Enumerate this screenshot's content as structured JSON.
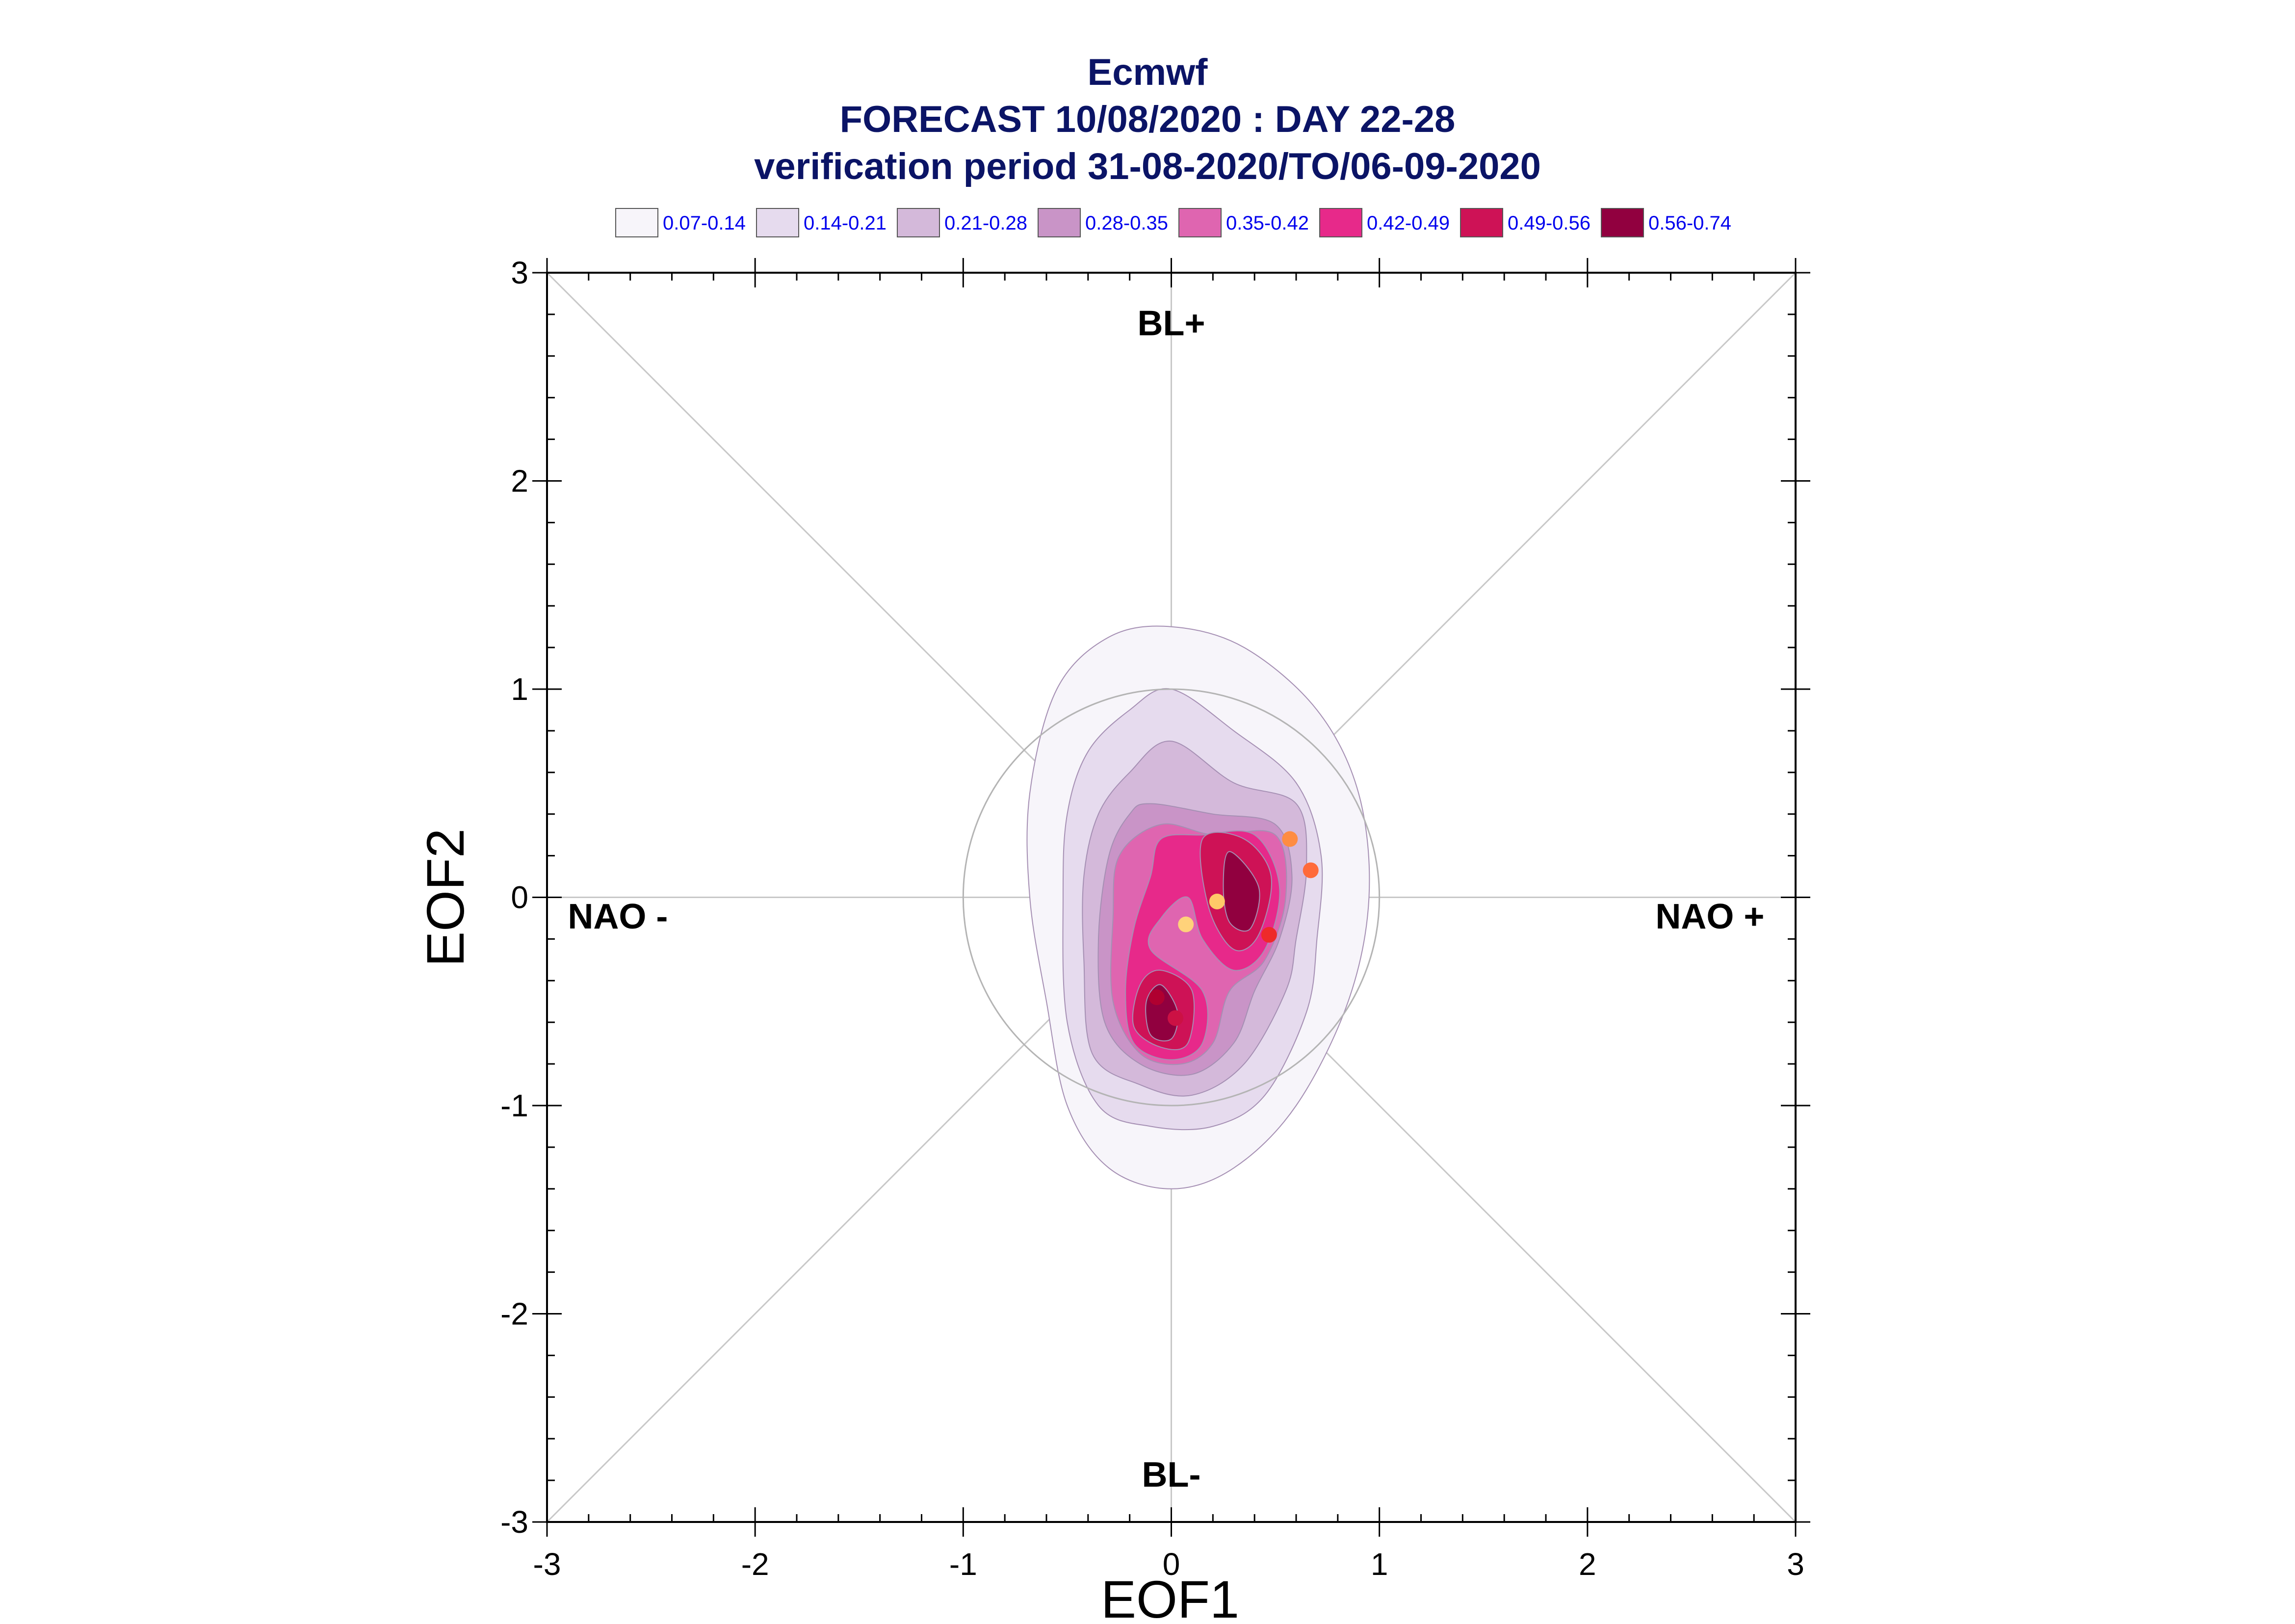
{
  "titles": {
    "line1": "Ecmwf",
    "line2": "FORECAST 10/08/2020 : DAY 22-28",
    "line3": "verification period 31-08-2020/TO/06-09-2020"
  },
  "chart_data": {
    "type": "scatter",
    "title": "Ecmwf",
    "subtitle": "FORECAST 10/08/2020 : DAY 22-28 / verification period 31-08-2020/TO/06-09-2020",
    "xlabel": "EOF1",
    "ylabel": "EOF2",
    "xlim": [
      -3,
      3
    ],
    "ylim": [
      -3,
      3
    ],
    "xticks": [
      "-3",
      "-2",
      "-1",
      "0",
      "1",
      "2",
      "3"
    ],
    "yticks": [
      "-3",
      "-2",
      "-1",
      "0",
      "1",
      "2",
      "3"
    ],
    "grid": false,
    "region_labels": {
      "top": "BL+",
      "bottom": "BL-",
      "left": "NAO -",
      "right": "NAO +"
    },
    "reference_circle_radius": 1,
    "legend": {
      "placement": "top",
      "entries": [
        {
          "label": "0.07-0.14",
          "color": "#f7f5fa"
        },
        {
          "label": "0.14-0.21",
          "color": "#e6dbee"
        },
        {
          "label": "0.21-0.28",
          "color": "#d4b9da"
        },
        {
          "label": "0.28-0.35",
          "color": "#c994c7"
        },
        {
          "label": "0.35-0.42",
          "color": "#df65b0"
        },
        {
          "label": "0.42-0.49",
          "color": "#e7298a"
        },
        {
          "label": "0.49-0.56",
          "color": "#ce1256"
        },
        {
          "label": "0.56-0.74",
          "color": "#91003f"
        }
      ]
    },
    "density_contours": [
      {
        "level": "0.07-0.14",
        "color": "#f7f5fa",
        "points": [
          [
            0,
            1.3
          ],
          [
            0.35,
            1.2
          ],
          [
            0.7,
            0.9
          ],
          [
            0.9,
            0.5
          ],
          [
            0.95,
            0
          ],
          [
            0.85,
            -0.5
          ],
          [
            0.6,
            -1.0
          ],
          [
            0.3,
            -1.3
          ],
          [
            0,
            -1.4
          ],
          [
            -0.3,
            -1.3
          ],
          [
            -0.5,
            -1.0
          ],
          [
            -0.6,
            -0.5
          ],
          [
            -0.68,
            0
          ],
          [
            -0.68,
            0.5
          ],
          [
            -0.55,
            1.0
          ],
          [
            -0.3,
            1.25
          ]
        ]
      },
      {
        "level": "0.14-0.21",
        "color": "#e6dbee",
        "points": [
          [
            0,
            1.0
          ],
          [
            0.3,
            0.8
          ],
          [
            0.6,
            0.55
          ],
          [
            0.72,
            0.2
          ],
          [
            0.7,
            -0.2
          ],
          [
            0.65,
            -0.55
          ],
          [
            0.45,
            -0.95
          ],
          [
            0.2,
            -1.1
          ],
          [
            -0.1,
            -1.1
          ],
          [
            -0.35,
            -1.0
          ],
          [
            -0.5,
            -0.6
          ],
          [
            -0.52,
            0
          ],
          [
            -0.5,
            0.4
          ],
          [
            -0.4,
            0.7
          ],
          [
            -0.2,
            0.9
          ]
        ]
      },
      {
        "level": "0.21-0.28",
        "color": "#d4b9da",
        "points": [
          [
            0,
            0.75
          ],
          [
            0.3,
            0.55
          ],
          [
            0.6,
            0.45
          ],
          [
            0.65,
            0.15
          ],
          [
            0.6,
            -0.2
          ],
          [
            0.55,
            -0.45
          ],
          [
            0.35,
            -0.8
          ],
          [
            0.1,
            -0.95
          ],
          [
            -0.15,
            -0.9
          ],
          [
            -0.38,
            -0.75
          ],
          [
            -0.42,
            -0.3
          ],
          [
            -0.42,
            0.1
          ],
          [
            -0.35,
            0.4
          ],
          [
            -0.2,
            0.6
          ]
        ]
      },
      {
        "level": "0.28-0.35",
        "color": "#c994c7",
        "points": [
          [
            -0.1,
            0.45
          ],
          [
            0.2,
            0.4
          ],
          [
            0.5,
            0.35
          ],
          [
            0.58,
            0.1
          ],
          [
            0.52,
            -0.2
          ],
          [
            0.4,
            -0.45
          ],
          [
            0.3,
            -0.7
          ],
          [
            0.1,
            -0.85
          ],
          [
            -0.15,
            -0.8
          ],
          [
            -0.32,
            -0.6
          ],
          [
            -0.35,
            -0.2
          ],
          [
            -0.3,
            0.2
          ],
          [
            -0.2,
            0.4
          ]
        ]
      },
      {
        "level": "0.35-0.42",
        "color": "#df65b0",
        "points": [
          [
            -0.05,
            0.35
          ],
          [
            0.2,
            0.3
          ],
          [
            0.5,
            0.3
          ],
          [
            0.55,
            0
          ],
          [
            0.45,
            -0.3
          ],
          [
            0.28,
            -0.45
          ],
          [
            0.2,
            -0.7
          ],
          [
            0.05,
            -0.8
          ],
          [
            -0.15,
            -0.75
          ],
          [
            -0.28,
            -0.5
          ],
          [
            -0.28,
            -0.1
          ],
          [
            -0.25,
            0.2
          ]
        ]
      },
      {
        "level": "0.42-0.49",
        "color": "#e7298a",
        "points": [
          [
            0.15,
            0.3
          ],
          [
            0.4,
            0.3
          ],
          [
            0.52,
            0.05
          ],
          [
            0.45,
            -0.25
          ],
          [
            0.3,
            -0.35
          ],
          [
            0.15,
            -0.2
          ],
          [
            0.08,
            0
          ],
          [
            -0.05,
            -0.1
          ],
          [
            -0.1,
            -0.25
          ],
          [
            0.15,
            -0.45
          ],
          [
            0.15,
            -0.7
          ],
          [
            0,
            -0.78
          ],
          [
            -0.18,
            -0.7
          ],
          [
            -0.22,
            -0.45
          ],
          [
            -0.18,
            -0.15
          ],
          [
            -0.1,
            0.1
          ],
          [
            -0.05,
            0.28
          ]
        ]
      },
      {
        "level": "0.49-0.56",
        "color": "#ce1256",
        "points": [
          [
            0.15,
            0.28
          ],
          [
            0.35,
            0.28
          ],
          [
            0.48,
            0.1
          ],
          [
            0.42,
            -0.18
          ],
          [
            0.3,
            -0.25
          ],
          [
            0.18,
            -0.05
          ]
        ]
      },
      {
        "level": "0.49-0.56b",
        "color": "#ce1256",
        "points": [
          [
            -0.05,
            -0.35
          ],
          [
            0.1,
            -0.45
          ],
          [
            0.08,
            -0.7
          ],
          [
            -0.05,
            -0.72
          ],
          [
            -0.18,
            -0.62
          ],
          [
            -0.15,
            -0.42
          ]
        ]
      },
      {
        "level": "0.56-0.74",
        "color": "#91003f",
        "points": [
          [
            0.28,
            0.22
          ],
          [
            0.42,
            0.05
          ],
          [
            0.38,
            -0.15
          ],
          [
            0.28,
            -0.12
          ],
          [
            0.25,
            0.05
          ]
        ]
      },
      {
        "level": "0.56-0.74b",
        "color": "#91003f",
        "points": [
          [
            -0.05,
            -0.42
          ],
          [
            0.03,
            -0.55
          ],
          [
            0,
            -0.68
          ],
          [
            -0.1,
            -0.66
          ],
          [
            -0.12,
            -0.5
          ]
        ]
      }
    ],
    "points": [
      {
        "x": 0.57,
        "y": 0.28,
        "color": "#ff8c42"
      },
      {
        "x": 0.67,
        "y": 0.13,
        "color": "#ff6a3a"
      },
      {
        "x": 0.22,
        "y": -0.02,
        "color": "#ffc968"
      },
      {
        "x": 0.07,
        "y": -0.13,
        "color": "#ffd27a"
      },
      {
        "x": 0.47,
        "y": -0.18,
        "color": "#ee2a2a"
      },
      {
        "x": 0.02,
        "y": -0.58,
        "color": "#cc1144"
      },
      {
        "x": -0.07,
        "y": -0.48,
        "color": "#b00030"
      }
    ]
  }
}
